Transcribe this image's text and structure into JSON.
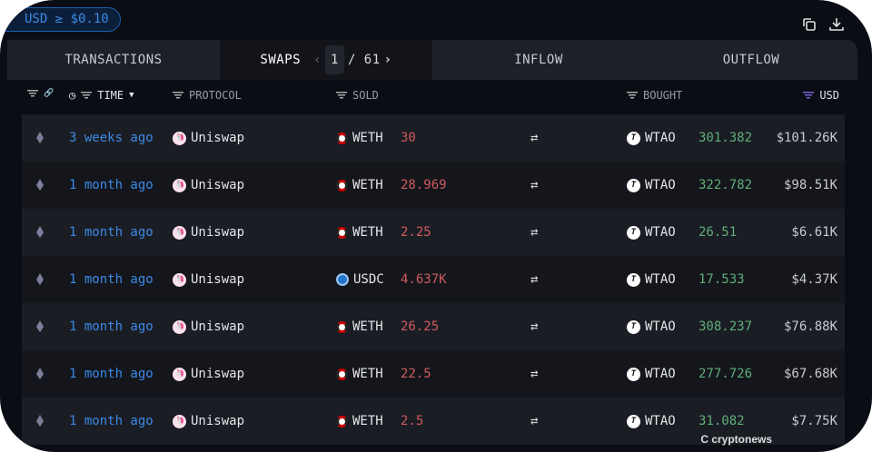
{
  "filter_pill": "USD ≥ $0.10",
  "tabs": [
    {
      "label": "TRANSACTIONS"
    },
    {
      "label": "SWAPS"
    },
    {
      "label": "INFLOW"
    },
    {
      "label": "OUTFLOW"
    }
  ],
  "pager": {
    "current": "1",
    "total": "/ 61"
  },
  "headers": {
    "time": "TIME",
    "protocol": "PROTOCOL",
    "sold": "SOLD",
    "bought": "BOUGHT",
    "usd": "USD"
  },
  "rows": [
    {
      "time": "3 weeks ago",
      "protocol": "Uniswap",
      "sold_token": "WETH",
      "sold_amount": "30",
      "bought_token": "WTAO",
      "bought_amount": "301.382",
      "usd": "$101.26K"
    },
    {
      "time": "1 month ago",
      "protocol": "Uniswap",
      "sold_token": "WETH",
      "sold_amount": "28.969",
      "bought_token": "WTAO",
      "bought_amount": "322.782",
      "usd": "$98.51K"
    },
    {
      "time": "1 month ago",
      "protocol": "Uniswap",
      "sold_token": "WETH",
      "sold_amount": "2.25",
      "bought_token": "WTAO",
      "bought_amount": "26.51",
      "usd": "$6.61K"
    },
    {
      "time": "1 month ago",
      "protocol": "Uniswap",
      "sold_token": "USDC",
      "sold_amount": "4.637K",
      "bought_token": "WTAO",
      "bought_amount": "17.533",
      "usd": "$4.37K"
    },
    {
      "time": "1 month ago",
      "protocol": "Uniswap",
      "sold_token": "WETH",
      "sold_amount": "26.25",
      "bought_token": "WTAO",
      "bought_amount": "308.237",
      "usd": "$76.88K"
    },
    {
      "time": "1 month ago",
      "protocol": "Uniswap",
      "sold_token": "WETH",
      "sold_amount": "22.5",
      "bought_token": "WTAO",
      "bought_amount": "277.726",
      "usd": "$67.68K"
    },
    {
      "time": "1 month ago",
      "protocol": "Uniswap",
      "sold_token": "WETH",
      "sold_amount": "2.5",
      "bought_token": "WTAO",
      "bought_amount": "31.082",
      "usd": "$7.75K"
    }
  ],
  "watermark": "cryptonews",
  "colors": {
    "link": "#3a8ae6",
    "sold": "#d05b5e",
    "bought": "#5fae78",
    "background": "#0b0d14"
  }
}
